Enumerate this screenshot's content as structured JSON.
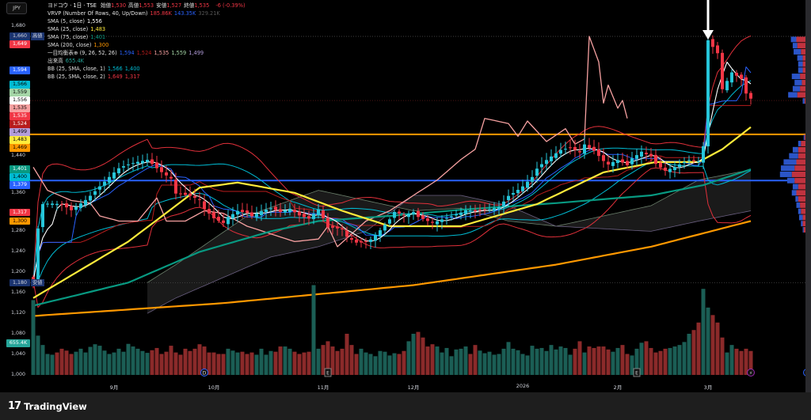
{
  "currency_button": "JPY",
  "legend": {
    "symbol": "ヨドコウ · 1日 · TSE",
    "ohlc": [
      {
        "k": "始値",
        "v": "1,530"
      },
      {
        "k": "高値",
        "v": "1,553"
      },
      {
        "k": "安値",
        "v": "1,527"
      },
      {
        "k": "終値",
        "v": "1,535"
      }
    ],
    "change": "-6 (-0.39%)",
    "lines": [
      {
        "name": "VRVP (Number Of Rows, 40, Up/Down)",
        "values": [
          {
            "v": "185.86K",
            "c": "#f23645"
          },
          {
            "v": "143.35K",
            "c": "#2962ff"
          },
          {
            "v": "329.21K",
            "c": "#555555"
          }
        ]
      },
      {
        "name": "SMA (5, close)",
        "values": [
          {
            "v": "1,556",
            "c": "#ffffff"
          }
        ]
      },
      {
        "name": "SMA (25, close)",
        "values": [
          {
            "v": "1,483",
            "c": "#ffeb3b"
          }
        ]
      },
      {
        "name": "SMA (75, close)",
        "values": [
          {
            "v": "1,401",
            "c": "#089981"
          }
        ]
      },
      {
        "name": "SMA (200, close)",
        "values": [
          {
            "v": "1,300",
            "c": "#ff9800"
          }
        ]
      },
      {
        "name": "一目均衡表⊕ (9, 26, 52, 26)",
        "values": [
          {
            "v": "1,594",
            "c": "#2962ff"
          },
          {
            "v": "1,524",
            "c": "#b71c1c"
          },
          {
            "v": "1,535",
            "c": "#f7a1a1"
          },
          {
            "v": "1,559",
            "c": "#a5d6a7"
          },
          {
            "v": "1,499",
            "c": "#b39ddb"
          }
        ]
      },
      {
        "name": "出来高",
        "values": [
          {
            "v": "655.4K",
            "c": "#26a69a"
          }
        ]
      },
      {
        "name": "BB (25, SMA, close, 1)",
        "values": [
          {
            "v": "1,566",
            "c": "#00bcd4"
          },
          {
            "v": "1,400",
            "c": "#00bcd4"
          }
        ]
      },
      {
        "name": "BB (25, SMA, close, 2)",
        "values": [
          {
            "v": "1,649",
            "c": "#f23645"
          },
          {
            "v": "1,317",
            "c": "#f23645"
          }
        ]
      }
    ]
  },
  "axis": {
    "ticks": [
      "1,680",
      "1,440",
      "1,360",
      "1,280",
      "1,240",
      "1,200",
      "1,160",
      "1,120",
      "1,080",
      "1,040",
      "1,000"
    ],
    "tick_values": [
      1680,
      1440,
      1360,
      1280,
      1240,
      1200,
      1160,
      1120,
      1080,
      1040,
      1000
    ],
    "tags": [
      {
        "label": "1,660",
        "price": 1660,
        "bg": "#1b3470",
        "fg": "#d1d4dc",
        "side": "高値"
      },
      {
        "label": "1,649",
        "price": 1649,
        "bg": "#f23645",
        "fg": "#ffffff"
      },
      {
        "label": "1,594",
        "price": 1594,
        "bg": "#2962ff",
        "fg": "#ffffff"
      },
      {
        "label": "1,566",
        "price": 1566,
        "bg": "#00bcd4",
        "fg": "#000000"
      },
      {
        "label": "1,559",
        "price": 1559,
        "bg": "#a5d6a7",
        "fg": "#000000"
      },
      {
        "label": "1,556",
        "price": 1556,
        "bg": "#ffffff",
        "fg": "#000000"
      },
      {
        "label": "1,535",
        "price": 1535,
        "bg": "#f7a1a1",
        "fg": "#000000"
      },
      {
        "label": "1,535",
        "price": 1535,
        "bg": "#f23645",
        "fg": "#ffffff"
      },
      {
        "label": "1,524",
        "price": 1524,
        "bg": "#b71c1c",
        "fg": "#ffffff"
      },
      {
        "label": "1,499",
        "price": 1499,
        "bg": "#b39ddb",
        "fg": "#000000"
      },
      {
        "label": "1,483",
        "price": 1483,
        "bg": "#ffeb3b",
        "fg": "#000000"
      },
      {
        "label": "1,469",
        "price": 1469,
        "bg": "#ff9800",
        "fg": "#000000"
      },
      {
        "label": "1,401",
        "price": 1401,
        "bg": "#089981",
        "fg": "#ffffff"
      },
      {
        "label": "1,400",
        "price": 1400,
        "bg": "#00bcd4",
        "fg": "#000000"
      },
      {
        "label": "1,379",
        "price": 1379,
        "bg": "#2962ff",
        "fg": "#ffffff"
      },
      {
        "label": "1,317",
        "price": 1317,
        "bg": "#f23645",
        "fg": "#ffffff"
      },
      {
        "label": "1,300",
        "price": 1300,
        "bg": "#ff9800",
        "fg": "#000000"
      },
      {
        "label": "1,180",
        "price": 1180,
        "bg": "#1b3470",
        "fg": "#d1d4dc",
        "side": "安値"
      }
    ],
    "volume_tag": {
      "label": "655.4K",
      "bg": "#26a69a"
    }
  },
  "dates": [
    {
      "label": "9月",
      "bar": 17
    },
    {
      "label": "10月",
      "bar": 38
    },
    {
      "label": "11月",
      "bar": 61
    },
    {
      "label": "12月",
      "bar": 80
    },
    {
      "label": "2026",
      "bar": 103
    },
    {
      "label": "2月",
      "bar": 123
    },
    {
      "label": "3月",
      "bar": 142
    }
  ],
  "events": [
    {
      "glyph": "D",
      "bar": 36,
      "color": "#2962ff"
    },
    {
      "glyph": "E",
      "bar": 62,
      "color": "#999999"
    },
    {
      "glyph": "E",
      "bar": 127,
      "color": "#999999"
    },
    {
      "glyph": "⚡",
      "bar": 151,
      "color": "#9c27b0"
    }
  ],
  "footer": {
    "brand": "TradingView"
  },
  "chart_data": {
    "type": "candlestick",
    "price_range": [
      1000,
      1680
    ],
    "horizontal_lines": [
      {
        "price": 1469,
        "color": "#ff9800"
      },
      {
        "price": 1379,
        "color": "#2962ff"
      }
    ],
    "dotted_lines": [
      {
        "price": 1660,
        "color": "#555555"
      },
      {
        "price": 1535,
        "color": "#7a1f1f"
      },
      {
        "price": 1180,
        "color": "#555555"
      }
    ],
    "close_waypoints": [
      [
        0,
        1183
      ],
      [
        1,
        1284
      ],
      [
        2,
        1330
      ],
      [
        6,
        1330
      ],
      [
        8,
        1322
      ],
      [
        10,
        1338
      ],
      [
        11,
        1345
      ],
      [
        14,
        1369
      ],
      [
        16,
        1384
      ],
      [
        18,
        1399
      ],
      [
        20,
        1407
      ],
      [
        22,
        1415
      ],
      [
        24,
        1422
      ],
      [
        25,
        1415
      ],
      [
        27,
        1399
      ],
      [
        29,
        1384
      ],
      [
        30,
        1353
      ],
      [
        33,
        1345
      ],
      [
        35,
        1338
      ],
      [
        36,
        1322
      ],
      [
        38,
        1307
      ],
      [
        40,
        1300
      ],
      [
        41,
        1312
      ],
      [
        43,
        1322
      ],
      [
        45,
        1315
      ],
      [
        46,
        1307
      ],
      [
        48,
        1315
      ],
      [
        50,
        1322
      ],
      [
        52,
        1318
      ],
      [
        54,
        1327
      ],
      [
        56,
        1315
      ],
      [
        58,
        1307
      ],
      [
        60,
        1322
      ],
      [
        62,
        1284
      ],
      [
        65,
        1281
      ],
      [
        66,
        1268
      ],
      [
        68,
        1260
      ],
      [
        70,
        1263
      ],
      [
        71,
        1268
      ],
      [
        73,
        1284
      ],
      [
        75,
        1302
      ],
      [
        76,
        1315
      ],
      [
        78,
        1307
      ],
      [
        80,
        1315
      ],
      [
        81,
        1307
      ],
      [
        84,
        1300
      ],
      [
        86,
        1307
      ],
      [
        90,
        1315
      ],
      [
        91,
        1318
      ],
      [
        93,
        1315
      ],
      [
        96,
        1322
      ],
      [
        98,
        1330
      ],
      [
        100,
        1353
      ],
      [
        103,
        1369
      ],
      [
        105,
        1384
      ],
      [
        106,
        1399
      ],
      [
        108,
        1415
      ],
      [
        110,
        1430
      ],
      [
        111,
        1438
      ],
      [
        113,
        1446
      ],
      [
        115,
        1438
      ],
      [
        116,
        1453
      ],
      [
        118,
        1438
      ],
      [
        120,
        1415
      ],
      [
        121,
        1407
      ],
      [
        123,
        1415
      ],
      [
        125,
        1407
      ],
      [
        126,
        1422
      ],
      [
        128,
        1438
      ],
      [
        130,
        1430
      ],
      [
        131,
        1415
      ],
      [
        133,
        1399
      ],
      [
        135,
        1403
      ],
      [
        136,
        1407
      ],
      [
        138,
        1415
      ],
      [
        140,
        1415
      ],
      [
        141,
        1446
      ],
      [
        142,
        1654
      ],
      [
        144,
        1631
      ],
      [
        145,
        1561
      ],
      [
        147,
        1592
      ],
      [
        149,
        1576
      ],
      [
        150,
        1546
      ],
      [
        151,
        1535
      ]
    ],
    "sma200": [
      [
        0,
        1115
      ],
      [
        40,
        1140
      ],
      [
        80,
        1175
      ],
      [
        110,
        1215
      ],
      [
        130,
        1250
      ],
      [
        151,
        1300
      ]
    ],
    "sma75": [
      [
        0,
        1135
      ],
      [
        20,
        1180
      ],
      [
        35,
        1240
      ],
      [
        50,
        1280
      ],
      [
        60,
        1300
      ],
      [
        75,
        1310
      ],
      [
        90,
        1322
      ],
      [
        110,
        1335
      ],
      [
        130,
        1350
      ],
      [
        141,
        1370
      ],
      [
        151,
        1401
      ]
    ],
    "sma25": [
      [
        0,
        1150
      ],
      [
        20,
        1260
      ],
      [
        35,
        1365
      ],
      [
        43,
        1375
      ],
      [
        55,
        1355
      ],
      [
        65,
        1320
      ],
      [
        75,
        1290
      ],
      [
        90,
        1290
      ],
      [
        106,
        1333
      ],
      [
        120,
        1395
      ],
      [
        131,
        1415
      ],
      [
        140,
        1415
      ],
      [
        145,
        1440
      ],
      [
        151,
        1483
      ]
    ],
    "lagging_span": [
      [
        0,
        1405
      ],
      [
        3,
        1360
      ],
      [
        8,
        1340
      ],
      [
        12,
        1335
      ],
      [
        14,
        1310
      ],
      [
        18,
        1300
      ],
      [
        22,
        1300
      ],
      [
        26,
        1345
      ],
      [
        28,
        1300
      ],
      [
        32,
        1300
      ],
      [
        36,
        1320
      ],
      [
        40,
        1315
      ],
      [
        45,
        1290
      ],
      [
        50,
        1275
      ],
      [
        55,
        1260
      ],
      [
        60,
        1265
      ],
      [
        62,
        1290
      ],
      [
        64,
        1250
      ],
      [
        70,
        1300
      ],
      [
        75,
        1320
      ],
      [
        80,
        1350
      ],
      [
        85,
        1380
      ],
      [
        90,
        1420
      ],
      [
        93,
        1440
      ],
      [
        95,
        1500
      ],
      [
        100,
        1490
      ],
      [
        102,
        1465
      ],
      [
        104,
        1495
      ],
      [
        106,
        1475
      ],
      [
        108,
        1455
      ],
      [
        112,
        1480
      ],
      [
        114,
        1450
      ],
      [
        116,
        1460
      ],
      [
        117,
        1660
      ],
      [
        119,
        1610
      ],
      [
        120,
        1530
      ],
      [
        121,
        1565
      ],
      [
        123,
        1520
      ],
      [
        124,
        1535
      ],
      [
        125,
        1500
      ]
    ],
    "cloud_a": [
      [
        24,
        1180
      ],
      [
        30,
        1215
      ],
      [
        45,
        1310
      ],
      [
        60,
        1360
      ],
      [
        70,
        1340
      ],
      [
        80,
        1320
      ],
      [
        90,
        1325
      ],
      [
        100,
        1300
      ],
      [
        110,
        1290
      ],
      [
        130,
        1330
      ],
      [
        140,
        1380
      ],
      [
        151,
        1400
      ]
    ],
    "cloud_b": [
      [
        24,
        1120
      ],
      [
        30,
        1150
      ],
      [
        50,
        1230
      ],
      [
        60,
        1250
      ],
      [
        70,
        1280
      ],
      [
        80,
        1350
      ],
      [
        90,
        1350
      ],
      [
        100,
        1330
      ],
      [
        110,
        1290
      ],
      [
        130,
        1280
      ],
      [
        140,
        1300
      ],
      [
        151,
        1320
      ]
    ],
    "volume_k": [
      2000,
      1050,
      800,
      560,
      540,
      600,
      700,
      650,
      560,
      620,
      700,
      600,
      750,
      820,
      780,
      650,
      560,
      600,
      700,
      620,
      830,
      760,
      700,
      640,
      590,
      660,
      720,
      560,
      620,
      780,
      600,
      540,
      700,
      640,
      700,
      820,
      760,
      600,
      600,
      560,
      560,
      700,
      650,
      600,
      620,
      560,
      600,
      540,
      700,
      540,
      640,
      620,
      760,
      760,
      700,
      620,
      560,
      600,
      620,
      2400,
      700,
      800,
      900,
      760,
      640,
      700,
      1100,
      800,
      560,
      700,
      600,
      560,
      500,
      640,
      620,
      520,
      580,
      560,
      640,
      900,
      1100,
      1150,
      1000,
      760,
      820,
      760,
      600,
      720,
      500,
      680,
      700,
      760,
      560,
      800,
      650,
      580,
      620,
      540,
      560,
      700,
      880,
      700,
      660,
      560,
      520,
      780,
      700,
      720,
      640,
      800,
      680,
      760,
      720,
      540,
      700,
      900,
      600,
      760,
      720,
      760,
      760,
      680,
      620,
      720,
      800,
      560,
      520,
      700,
      860,
      900,
      720,
      600,
      640,
      700,
      720,
      760,
      800,
      880,
      1100,
      1200,
      1400,
      2300,
      1800,
      1600,
      1400,
      1000,
      600,
      800,
      700,
      640,
      700,
      640
    ],
    "vrvp_rows": [
      [
        1654,
        6,
        10
      ],
      [
        1642,
        5,
        9
      ],
      [
        1630,
        8,
        5
      ],
      [
        1618,
        6,
        3
      ],
      [
        1606,
        5,
        3
      ],
      [
        1594,
        5,
        3
      ],
      [
        1582,
        9,
        6
      ],
      [
        1570,
        8,
        4
      ],
      [
        1558,
        8,
        6
      ],
      [
        1546,
        10,
        9
      ],
      [
        1534,
        2,
        1
      ],
      [
        1463,
        1,
        1
      ],
      [
        1451,
        3,
        5
      ],
      [
        1439,
        6,
        8
      ],
      [
        1427,
        10,
        8
      ],
      [
        1415,
        14,
        10
      ],
      [
        1403,
        15,
        12
      ],
      [
        1391,
        13,
        15
      ],
      [
        1379,
        8,
        12
      ],
      [
        1367,
        6,
        8
      ],
      [
        1355,
        5,
        10
      ],
      [
        1343,
        3,
        8
      ],
      [
        1331,
        4,
        6
      ],
      [
        1319,
        3,
        5
      ],
      [
        1307,
        4,
        3
      ],
      [
        1295,
        2,
        3
      ],
      [
        1283,
        1,
        2
      ]
    ],
    "colors": {
      "up": "#26c6da",
      "down": "#f23645",
      "vol_up": "#1b5e55",
      "vol_down": "#8b2a2a"
    }
  }
}
